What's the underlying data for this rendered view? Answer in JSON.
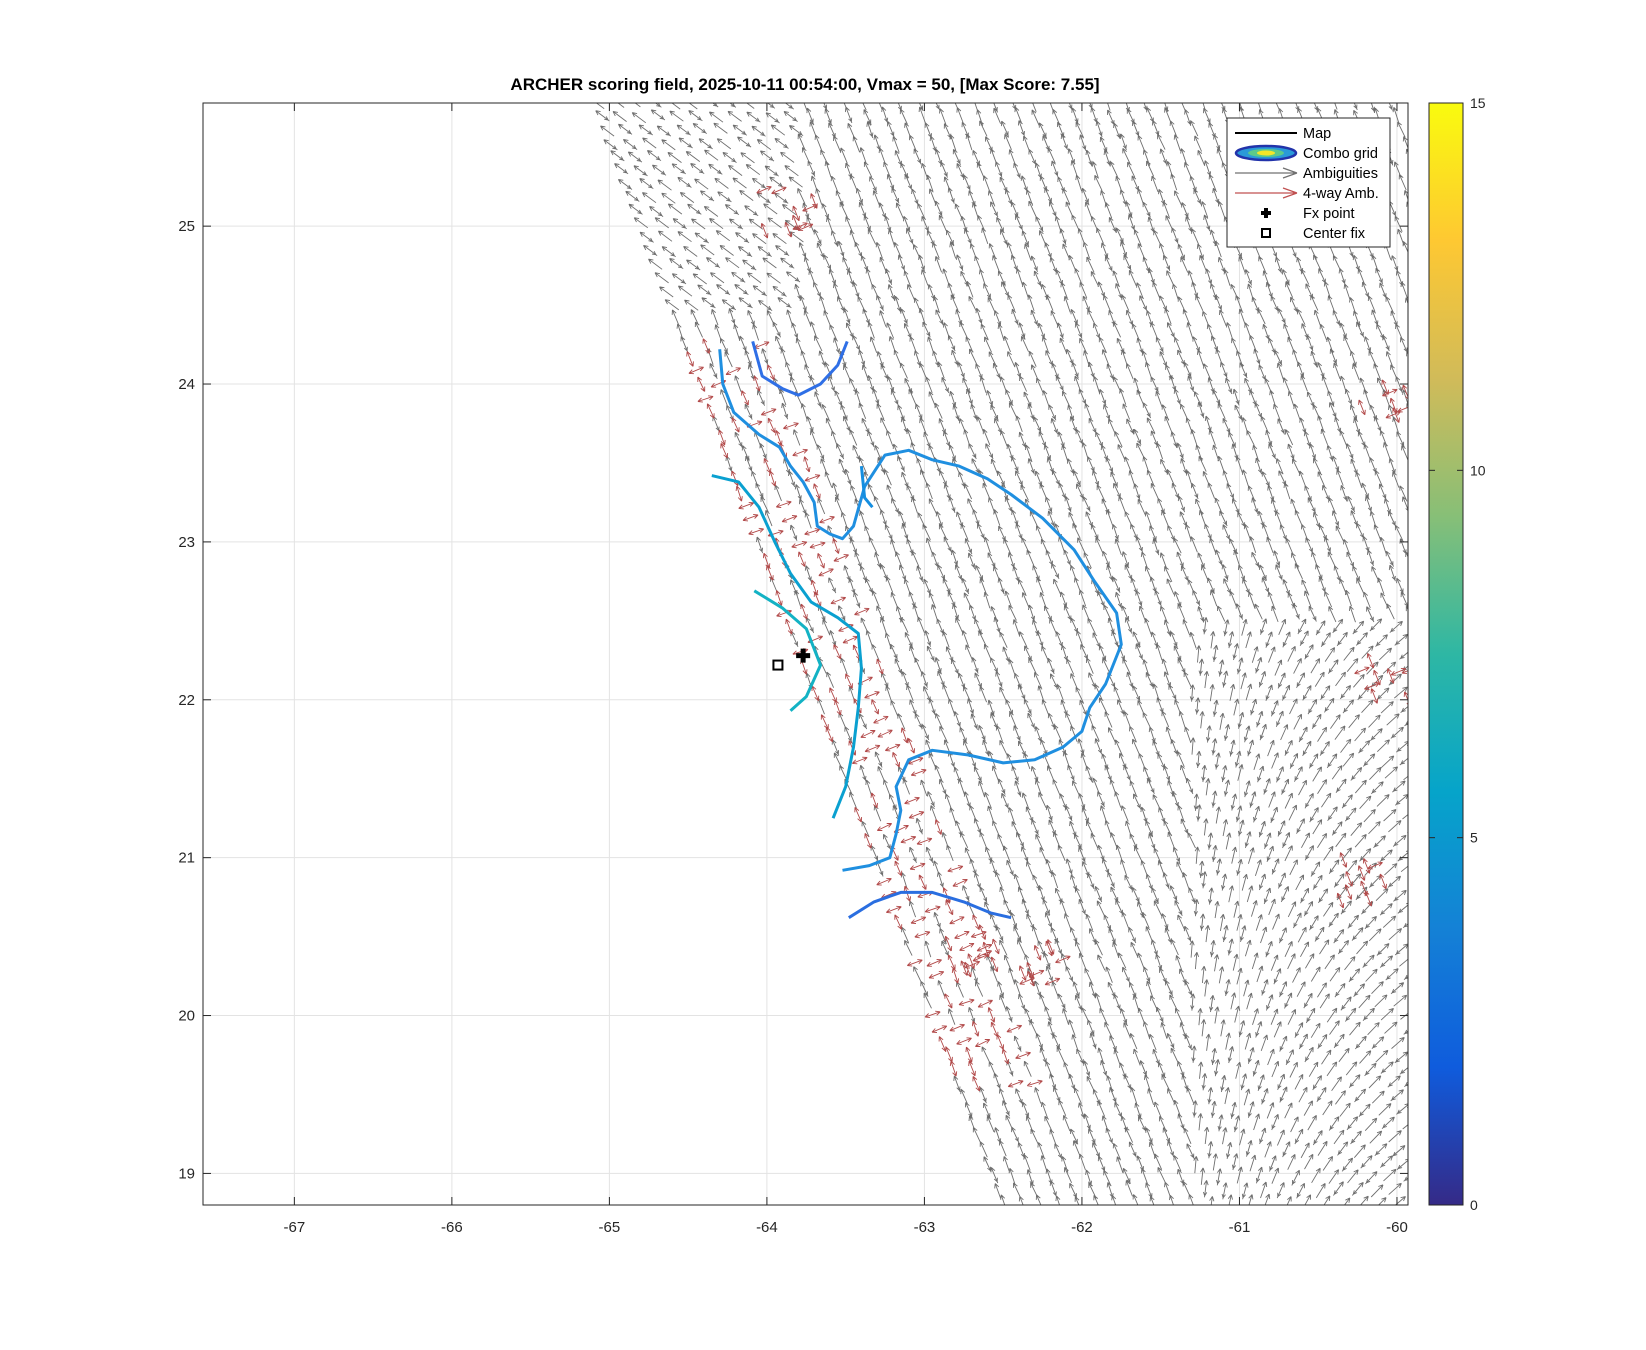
{
  "chart_data": {
    "type": "vector-field",
    "title": "ARCHER scoring field, 2025-10-11 00:54:00, Vmax = 50, [Max Score: 7.55]",
    "xlabel": "",
    "ylabel": "",
    "xlim": [
      -67.58,
      -59.93
    ],
    "ylim": [
      18.8,
      25.78
    ],
    "x_ticks": [
      -67,
      -66,
      -65,
      -64,
      -63,
      -62,
      -61,
      -60
    ],
    "y_ticks": [
      19,
      20,
      21,
      22,
      23,
      24,
      25
    ],
    "grid": true,
    "legend": {
      "placement": "top-right",
      "entries": [
        {
          "label": "Map",
          "symbol": "line",
          "color": "#000000"
        },
        {
          "label": "Combo grid",
          "symbol": "contour",
          "color": "#2233aa"
        },
        {
          "label": "Ambiguities",
          "symbol": "arrow",
          "color": "#707070"
        },
        {
          "label": "4-way Amb.",
          "symbol": "arrow",
          "color": "#c05050"
        },
        {
          "label": "Fx point",
          "symbol": "plus",
          "color": "#000000"
        },
        {
          "label": "Center fix",
          "symbol": "square",
          "color": "#000000"
        }
      ]
    },
    "colorbar": {
      "colormap": "parula",
      "range": [
        0,
        15
      ],
      "ticks": [
        0,
        5,
        10,
        15
      ],
      "colors": [
        "#352a87",
        "#0f5cdd",
        "#1481d6",
        "#06a4ca",
        "#2eb7a4",
        "#87bf77",
        "#d1bb59",
        "#fec832",
        "#f9fb0e"
      ]
    },
    "points": {
      "fx_point": {
        "lon": -63.77,
        "lat": 22.28
      },
      "center_fix": {
        "lon": -63.93,
        "lat": 22.22
      }
    },
    "contours": [
      {
        "level": 4.8,
        "color": "#2f6fe6",
        "points": [
          [
            -64.09,
            24.27
          ],
          [
            -64.03,
            24.05
          ],
          [
            -63.9,
            23.97
          ],
          [
            -63.8,
            23.93
          ],
          [
            -63.66,
            24.0
          ],
          [
            -63.55,
            24.12
          ],
          [
            -63.49,
            24.27
          ]
        ]
      },
      {
        "level": 5.6,
        "color": "#1f8fe0",
        "points": [
          [
            -64.3,
            24.22
          ],
          [
            -64.28,
            24.0
          ],
          [
            -64.21,
            23.82
          ],
          [
            -64.05,
            23.68
          ],
          [
            -63.92,
            23.6
          ],
          [
            -63.85,
            23.48
          ],
          [
            -63.77,
            23.38
          ],
          [
            -63.7,
            23.25
          ],
          [
            -63.68,
            23.1
          ],
          [
            -63.6,
            23.05
          ],
          [
            -63.52,
            23.02
          ],
          [
            -63.45,
            23.1
          ],
          [
            -63.38,
            23.35
          ],
          [
            -63.25,
            23.55
          ],
          [
            -63.1,
            23.58
          ],
          [
            -62.95,
            23.52
          ],
          [
            -62.78,
            23.48
          ],
          [
            -62.6,
            23.4
          ],
          [
            -62.45,
            23.3
          ],
          [
            -62.25,
            23.15
          ],
          [
            -62.05,
            22.95
          ],
          [
            -61.92,
            22.75
          ],
          [
            -61.78,
            22.55
          ],
          [
            -61.75,
            22.35
          ],
          [
            -61.85,
            22.1
          ],
          [
            -61.95,
            21.95
          ],
          [
            -62.0,
            21.8
          ],
          [
            -62.12,
            21.7
          ],
          [
            -62.3,
            21.62
          ],
          [
            -62.5,
            21.6
          ],
          [
            -62.72,
            21.65
          ],
          [
            -62.95,
            21.68
          ],
          [
            -63.1,
            21.62
          ],
          [
            -63.18,
            21.45
          ],
          [
            -63.15,
            21.3
          ],
          [
            -63.18,
            21.15
          ],
          [
            -63.22,
            21.0
          ],
          [
            -63.35,
            20.95
          ],
          [
            -63.52,
            20.92
          ]
        ]
      },
      {
        "level": 6.2,
        "color": "#0aa0d0",
        "points": [
          [
            -64.35,
            23.42
          ],
          [
            -64.18,
            23.38
          ],
          [
            -64.05,
            23.22
          ],
          [
            -63.95,
            23.0
          ],
          [
            -63.85,
            22.8
          ],
          [
            -63.72,
            22.62
          ],
          [
            -63.55,
            22.52
          ],
          [
            -63.42,
            22.42
          ],
          [
            -63.4,
            22.2
          ],
          [
            -63.42,
            21.95
          ],
          [
            -63.45,
            21.7
          ],
          [
            -63.5,
            21.45
          ],
          [
            -63.58,
            21.25
          ]
        ]
      },
      {
        "level": 6.8,
        "color": "#13b2c4",
        "points": [
          [
            -64.08,
            22.69
          ],
          [
            -63.9,
            22.58
          ],
          [
            -63.75,
            22.45
          ],
          [
            -63.66,
            22.22
          ],
          [
            -63.75,
            22.02
          ],
          [
            -63.85,
            21.93
          ]
        ]
      },
      {
        "level": 4.2,
        "color": "#2a6ee0",
        "points": [
          [
            -63.48,
            20.62
          ],
          [
            -63.32,
            20.72
          ],
          [
            -63.15,
            20.78
          ],
          [
            -62.95,
            20.78
          ],
          [
            -62.75,
            20.72
          ],
          [
            -62.58,
            20.65
          ],
          [
            -62.45,
            20.62
          ]
        ]
      },
      {
        "level": 5.8,
        "color": "#158ee0",
        "points": [
          [
            -63.4,
            23.48
          ],
          [
            -63.38,
            23.28
          ],
          [
            -63.33,
            23.22
          ]
        ]
      }
    ]
  }
}
